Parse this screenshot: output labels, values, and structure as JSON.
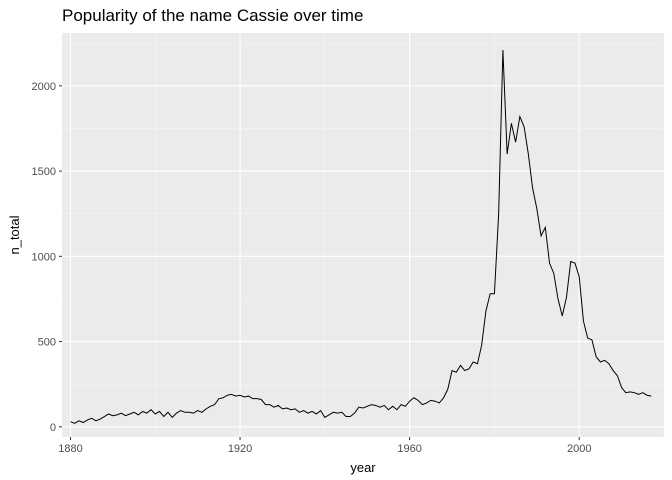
{
  "chart_data": {
    "type": "line",
    "title": "Popularity of the name Cassie over time",
    "xlabel": "year",
    "ylabel": "n_total",
    "xlim": [
      1878,
      2020
    ],
    "ylim": [
      -60,
      2310
    ],
    "x_ticks": [
      1880,
      1920,
      1960,
      2000
    ],
    "y_ticks": [
      0,
      500,
      1000,
      1500,
      2000
    ],
    "x_tick_labels": [
      "1880",
      "1920",
      "1960",
      "2000"
    ],
    "y_tick_labels": [
      "0",
      "500",
      "1000",
      "1500",
      "2000"
    ],
    "grid": true,
    "colors": {
      "panel": "#ebebeb",
      "grid_major": "#ffffff",
      "grid_minor": "#f5f5f5",
      "line": "#000000",
      "tick_text": "#4d4d4d"
    },
    "series": [
      {
        "x": [
          1880,
          1881,
          1882,
          1883,
          1884,
          1885,
          1886,
          1887,
          1888,
          1889,
          1890,
          1891,
          1892,
          1893,
          1894,
          1895,
          1896,
          1897,
          1898,
          1899,
          1900,
          1901,
          1902,
          1903,
          1904,
          1905,
          1906,
          1907,
          1908,
          1909,
          1910,
          1911,
          1912,
          1913,
          1914,
          1915,
          1916,
          1917,
          1918,
          1919,
          1920,
          1921,
          1922,
          1923,
          1924,
          1925,
          1926,
          1927,
          1928,
          1929,
          1930,
          1931,
          1932,
          1933,
          1934,
          1935,
          1936,
          1937,
          1938,
          1939,
          1940,
          1941,
          1942,
          1943,
          1944,
          1945,
          1946,
          1947,
          1948,
          1949,
          1950,
          1951,
          1952,
          1953,
          1954,
          1955,
          1956,
          1957,
          1958,
          1959,
          1960,
          1961,
          1962,
          1963,
          1964,
          1965,
          1966,
          1967,
          1968,
          1969,
          1970,
          1971,
          1972,
          1973,
          1974,
          1975,
          1976,
          1977,
          1978,
          1979,
          1980,
          1981,
          1982,
          1983,
          1984,
          1985,
          1986,
          1987,
          1988,
          1989,
          1990,
          1991,
          1992,
          1993,
          1994,
          1995,
          1996,
          1997,
          1998,
          1999,
          2000,
          2001,
          2002,
          2003,
          2004,
          2005,
          2006,
          2007,
          2008,
          2009,
          2010,
          2011,
          2012,
          2013,
          2014,
          2015,
          2016,
          2017
        ],
        "values": [
          30,
          20,
          35,
          25,
          40,
          50,
          35,
          45,
          60,
          75,
          65,
          70,
          80,
          65,
          75,
          85,
          70,
          90,
          80,
          100,
          75,
          90,
          60,
          85,
          55,
          80,
          95,
          85,
          85,
          80,
          95,
          85,
          105,
          120,
          130,
          165,
          170,
          185,
          190,
          180,
          185,
          175,
          180,
          165,
          165,
          160,
          130,
          130,
          115,
          125,
          105,
          110,
          100,
          105,
          85,
          95,
          80,
          90,
          75,
          95,
          55,
          70,
          85,
          80,
          85,
          60,
          60,
          80,
          115,
          110,
          120,
          130,
          125,
          115,
          125,
          100,
          120,
          100,
          130,
          120,
          150,
          170,
          155,
          130,
          140,
          155,
          150,
          140,
          170,
          220,
          330,
          320,
          360,
          330,
          340,
          380,
          370,
          480,
          680,
          780,
          780,
          1250,
          2210,
          1600,
          1780,
          1670,
          1820,
          1760,
          1600,
          1400,
          1280,
          1120,
          1170,
          960,
          900,
          750,
          650,
          760,
          970,
          960,
          880,
          620,
          520,
          510,
          410,
          380,
          390,
          370,
          330,
          300,
          230,
          200,
          205,
          200,
          190,
          200,
          185,
          180
        ]
      }
    ]
  }
}
